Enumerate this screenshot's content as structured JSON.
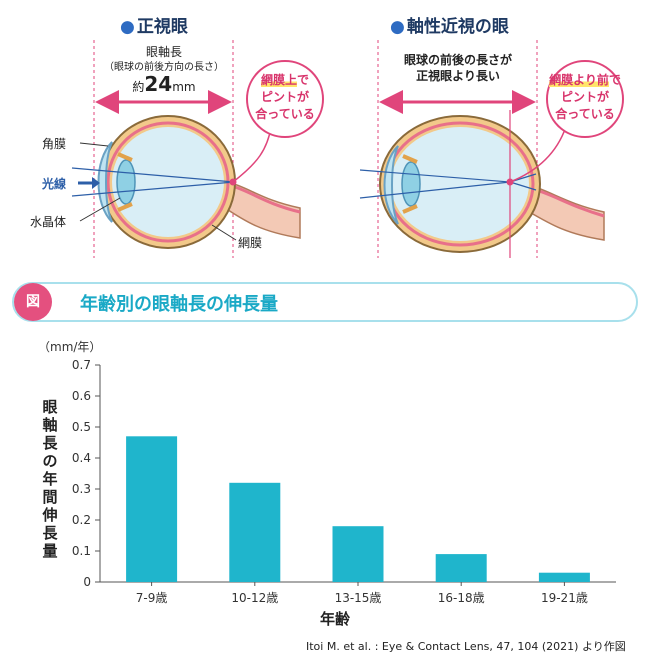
{
  "diagram": {
    "left": {
      "title_dot": "●",
      "title": "正視眼",
      "measure_line1": "眼軸長",
      "measure_line2": "（眼球の前後方向の長さ）",
      "measure_prefix": "約",
      "measure_value": "24",
      "measure_unit": "mm",
      "bubble": {
        "highlight": "網膜上",
        "rest1": "で",
        "line2": "ピントが",
        "line3": "合っている"
      }
    },
    "right": {
      "title_dot": "●",
      "title": "軸性近視の眼",
      "measure_line1": "眼球の前後の長さが",
      "measure_line2": "正視眼より長い",
      "bubble": {
        "highlight": "網膜より前",
        "rest1": "で",
        "line2": "ピントが",
        "line3": "合っている"
      }
    },
    "labels": {
      "cornea": "角膜",
      "light": "光線",
      "lens": "水晶体",
      "retina": "網膜"
    },
    "colors": {
      "vitreous": "#d9eef6",
      "sclera": "#f2c98a",
      "retina": "#e8708a",
      "pink": "#e0457b",
      "ray": "#2d5fa8"
    }
  },
  "banner": {
    "badge": "図",
    "title": "年齢別の眼軸長の伸長量"
  },
  "chart_data": {
    "type": "bar",
    "title": "年齢別の眼軸長の伸長量",
    "unit_label": "（mm/年）",
    "ylabel": "眼軸長の年間伸長量",
    "xlabel": "年齢",
    "categories": [
      "7-9歳",
      "10-12歳",
      "13-15歳",
      "16-18歳",
      "19-21歳"
    ],
    "values": [
      0.47,
      0.32,
      0.18,
      0.09,
      0.03
    ],
    "yticks": [
      "0",
      "0.1",
      "0.2",
      "0.3",
      "0.4",
      "0.5",
      "0.6",
      "0.7"
    ],
    "ylim": [
      0,
      0.7
    ],
    "bar_color": "#1fb5cc",
    "grid": false,
    "source": "Itoi M. et al. : Eye & Contact Lens, 47, 104 (2021) より作図"
  }
}
